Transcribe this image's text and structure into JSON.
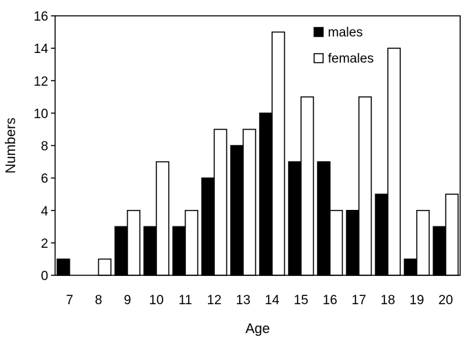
{
  "chart_data": {
    "type": "bar",
    "title": "",
    "xlabel": "Age",
    "ylabel": "Numbers",
    "categories": [
      "7",
      "8",
      "9",
      "10",
      "11",
      "12",
      "13",
      "14",
      "15",
      "16",
      "17",
      "18",
      "19",
      "20"
    ],
    "ylim": [
      0,
      16
    ],
    "yticks": [
      0,
      2,
      4,
      6,
      8,
      10,
      12,
      14,
      16
    ],
    "grid": false,
    "legend_position": "top-right",
    "series": [
      {
        "name": "males",
        "color": "#000000",
        "fill": "solid",
        "values": [
          1,
          0,
          3,
          3,
          3,
          6,
          8,
          10,
          7,
          7,
          4,
          5,
          1,
          3
        ]
      },
      {
        "name": "females",
        "color": "#ffffff",
        "fill": "hollow",
        "values": [
          0,
          1,
          4,
          7,
          4,
          9,
          9,
          15,
          11,
          4,
          11,
          14,
          4,
          5
        ]
      }
    ]
  }
}
